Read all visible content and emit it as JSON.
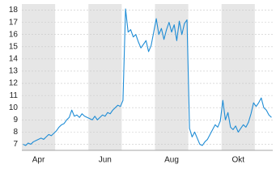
{
  "chart_data": {
    "type": "line",
    "categories": [
      null,
      null,
      null,
      null,
      null,
      null,
      "Apr",
      null,
      null,
      null,
      null,
      null,
      null,
      null,
      null,
      null,
      null,
      null,
      null,
      null,
      null,
      null,
      null,
      null,
      null,
      null,
      null,
      null,
      null,
      null,
      null,
      null,
      "Jun",
      null,
      null,
      null,
      null,
      null,
      null,
      null,
      null,
      null,
      null,
      null,
      null,
      null,
      null,
      null,
      null,
      null,
      null,
      null,
      null,
      null,
      null,
      null,
      null,
      null,
      "Aug",
      null,
      null,
      null,
      null,
      null,
      null,
      null,
      null,
      null,
      null,
      null,
      null,
      null,
      null,
      null,
      null,
      null,
      null,
      null,
      null,
      null,
      null,
      null,
      null,
      null,
      "Okt",
      null,
      null,
      null,
      null,
      null,
      null,
      null,
      null,
      null,
      null,
      null,
      null,
      null
    ],
    "values": [
      7.0,
      6.9,
      7.1,
      7.0,
      7.2,
      7.3,
      7.4,
      7.5,
      7.4,
      7.6,
      7.8,
      7.7,
      7.9,
      8.1,
      8.4,
      8.6,
      8.7,
      9.0,
      9.2,
      9.8,
      9.3,
      9.4,
      9.2,
      9.5,
      9.3,
      9.2,
      9.1,
      9.0,
      9.3,
      9.0,
      9.2,
      9.4,
      9.3,
      9.6,
      9.5,
      9.8,
      10.0,
      10.2,
      10.1,
      10.6,
      18.1,
      16.2,
      16.4,
      15.8,
      16.0,
      15.4,
      14.9,
      15.2,
      15.5,
      14.6,
      15.1,
      16.2,
      17.3,
      16.0,
      16.5,
      15.6,
      16.4,
      17.0,
      16.2,
      16.8,
      15.5,
      17.1,
      16.0,
      16.9,
      17.2,
      8.3,
      7.6,
      8.0,
      7.5,
      7.0,
      6.9,
      7.2,
      7.4,
      7.8,
      8.2,
      8.6,
      8.4,
      8.9,
      10.6,
      9.0,
      9.6,
      8.4,
      8.2,
      8.5,
      8.0,
      8.3,
      8.6,
      8.4,
      8.8,
      9.5,
      10.4,
      10.1,
      10.4,
      10.8,
      10.0,
      9.8,
      9.4,
      9.2
    ],
    "color": "#1f8dd6",
    "ylim": [
      6.5,
      18.5
    ],
    "yticks": [
      7,
      8,
      9,
      10,
      11,
      12,
      13,
      14,
      15,
      16,
      17,
      18
    ],
    "grid": true
  }
}
